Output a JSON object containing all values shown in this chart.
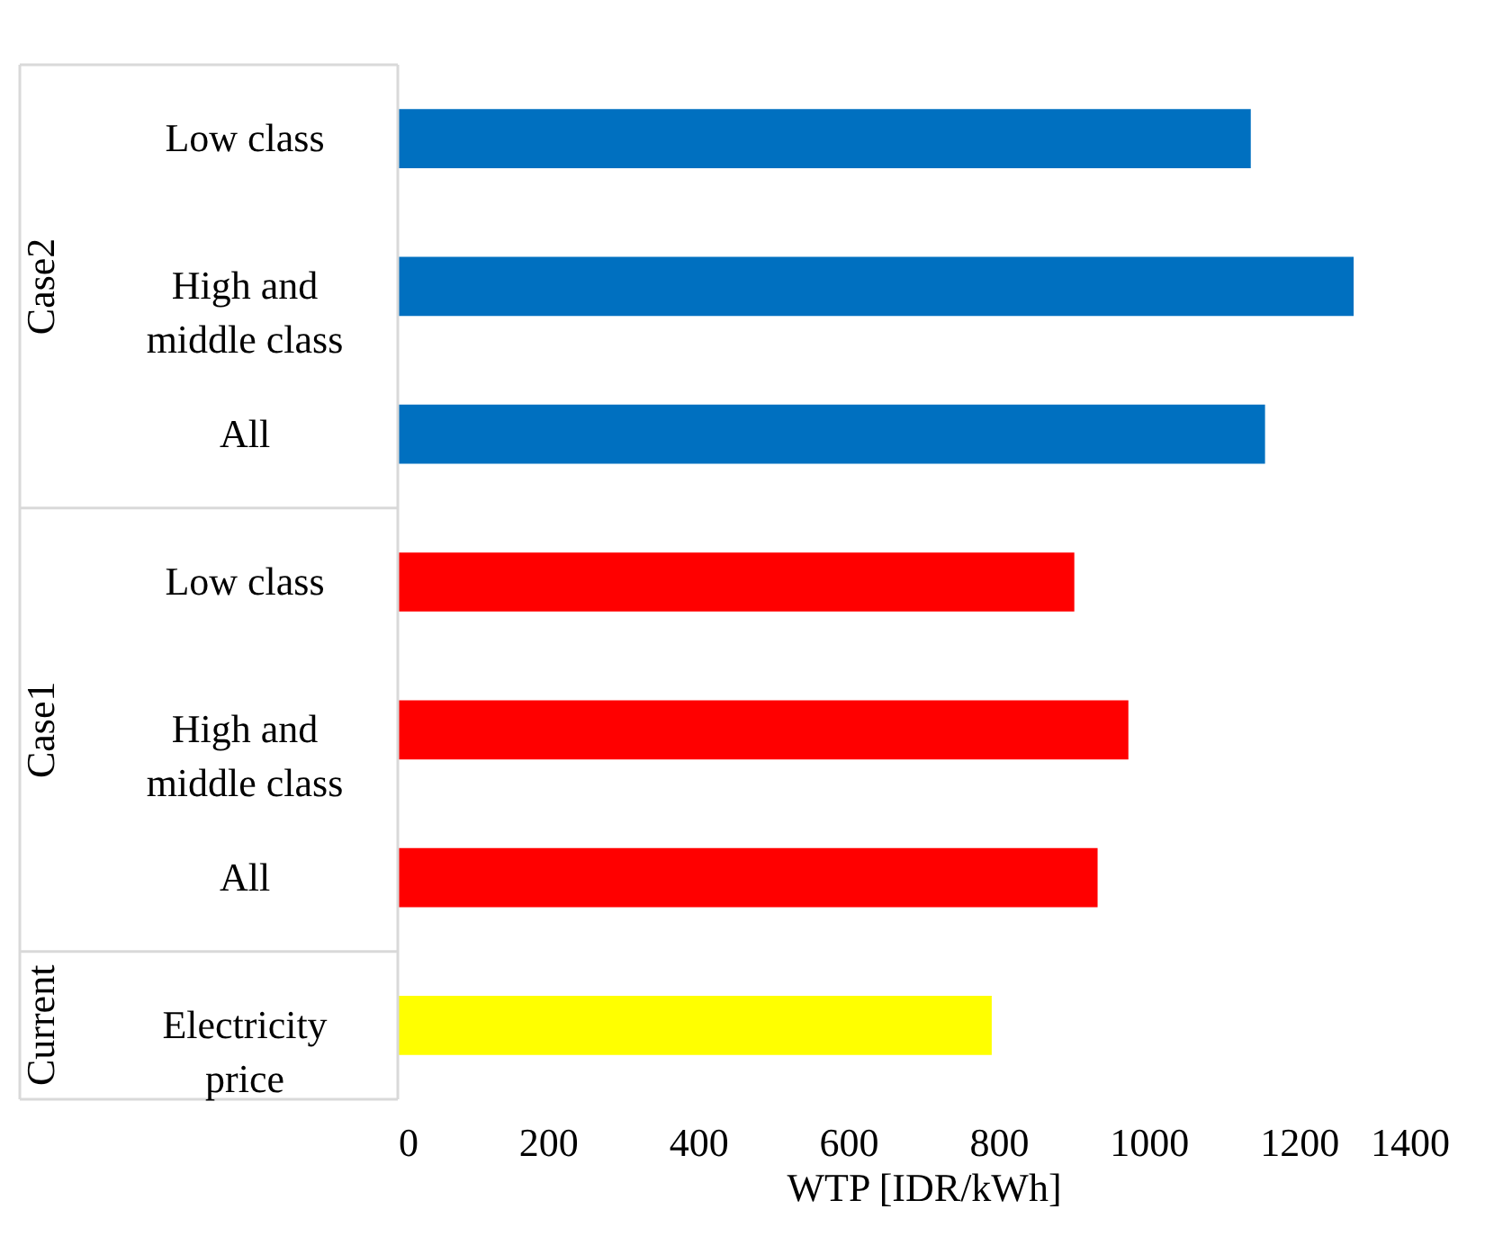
{
  "chart_data": {
    "type": "bar",
    "orientation": "horizontal",
    "xlabel": "WTP [IDR/kWh]",
    "categories": [
      "Low class",
      "High and middle class",
      "All",
      "Low class",
      "High and middle class",
      "All",
      "Electricity price"
    ],
    "values": [
      1136,
      1273,
      1155,
      901,
      973,
      932,
      791
    ],
    "colors": [
      "#0070c0",
      "#0070c0",
      "#0070c0",
      "#ff0000",
      "#ff0000",
      "#ff0000",
      "#ffff00"
    ],
    "annotations": [
      "Case2",
      "Case1",
      "Current"
    ],
    "xlim": [
      0,
      1400
    ],
    "xticks": [
      0,
      200,
      400,
      600,
      800,
      1000,
      1200,
      1400
    ],
    "grid": false
  }
}
